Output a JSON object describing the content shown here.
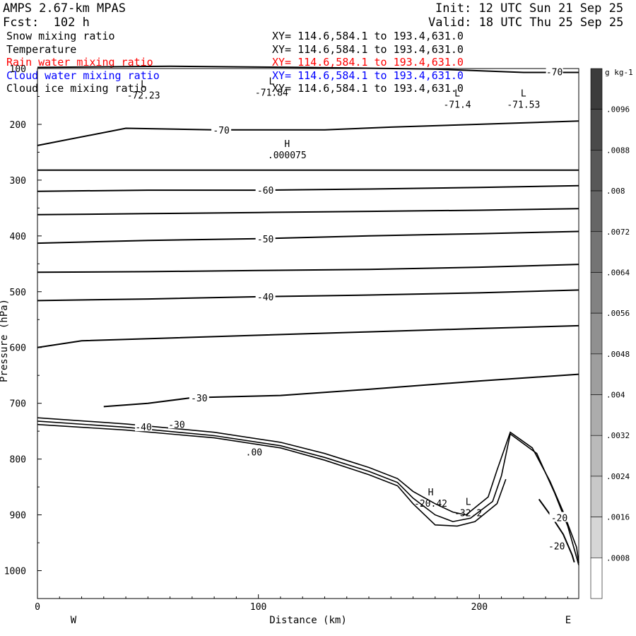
{
  "header": {
    "model": "AMPS 2.67-km MPAS",
    "forecast": "Fcst:  102 h",
    "init": "Init: 12 UTC Sun 21 Sep 25",
    "valid": "Valid: 18 UTC Thu 25 Sep 25"
  },
  "fields": [
    {
      "name": "Snow mixing ratio",
      "xy": "XY= 114.6,584.1 to 193.4,631.0",
      "color": "#000000"
    },
    {
      "name": "Temperature",
      "xy": "XY= 114.6,584.1 to 193.4,631.0",
      "color": "#000000"
    },
    {
      "name": "Rain water mixing ratio",
      "xy": "XY= 114.6,584.1 to 193.4,631.0",
      "color": "#ff0000"
    },
    {
      "name": "Cloud water mixing ratio",
      "xy": "XY= 114.6,584.1 to 193.4,631.0",
      "color": "#0000ff"
    },
    {
      "name": "Cloud ice mixing ratio",
      "xy": "XY= 114.6,584.1 to 193.4,631.0",
      "color": "#000000"
    }
  ],
  "chart_data": {
    "type": "contour-cross-section",
    "xlabel": "Distance (km)",
    "ylabel": "Pressure (hPa)",
    "xlim": [
      0,
      245
    ],
    "ylim": [
      1050,
      100
    ],
    "y_inverted": true,
    "x_ticks": [
      0,
      100,
      200
    ],
    "y_ticks": [
      100,
      200,
      300,
      400,
      500,
      600,
      700,
      800,
      900,
      1000
    ],
    "left_end_label": "W",
    "right_end_label": "E",
    "colorbar": {
      "unit": "g kg-1",
      "labels": [
        ".0096",
        ".0088",
        ".008",
        ".0072",
        ".0064",
        ".0056",
        ".0048",
        ".004",
        ".0032",
        ".0024",
        ".0016",
        ".0008"
      ],
      "colors_top_to_bottom": [
        "#3c3c3c",
        "#4a4a4a",
        "#585858",
        "#666666",
        "#747474",
        "#828282",
        "#909090",
        "#9e9e9e",
        "#acacac",
        "#bababa",
        "#c8c8c8",
        "#d6d6d6",
        "#ffffff"
      ]
    },
    "series": [
      {
        "name": "-70",
        "points": [
          [
            0,
            238
          ],
          [
            40,
            207
          ],
          [
            80,
            210
          ],
          [
            130,
            210
          ],
          [
            160,
            205
          ],
          [
            200,
            200
          ],
          [
            245,
            194
          ]
        ]
      },
      {
        "name": "",
        "points": [
          [
            0,
            282
          ],
          [
            245,
            282
          ]
        ]
      },
      {
        "name": "-60",
        "points": [
          [
            0,
            320
          ],
          [
            50,
            318
          ],
          [
            100,
            318
          ],
          [
            150,
            316
          ],
          [
            200,
            313
          ],
          [
            245,
            310
          ]
        ]
      },
      {
        "name": "",
        "points": [
          [
            0,
            362
          ],
          [
            50,
            360
          ],
          [
            100,
            358
          ],
          [
            150,
            356
          ],
          [
            200,
            354
          ],
          [
            245,
            351
          ]
        ]
      },
      {
        "name": "-50",
        "points": [
          [
            0,
            413
          ],
          [
            50,
            408
          ],
          [
            100,
            405
          ],
          [
            150,
            400
          ],
          [
            200,
            396
          ],
          [
            245,
            392
          ]
        ]
      },
      {
        "name": "",
        "points": [
          [
            0,
            465
          ],
          [
            50,
            464
          ],
          [
            100,
            462
          ],
          [
            150,
            460
          ],
          [
            200,
            456
          ],
          [
            245,
            451
          ]
        ]
      },
      {
        "name": "-40",
        "points": [
          [
            0,
            516
          ],
          [
            50,
            513
          ],
          [
            100,
            509
          ],
          [
            150,
            506
          ],
          [
            200,
            502
          ],
          [
            245,
            497
          ]
        ]
      },
      {
        "name": "",
        "points": [
          [
            0,
            600
          ],
          [
            20,
            588
          ],
          [
            100,
            578
          ],
          [
            150,
            572
          ],
          [
            200,
            566
          ],
          [
            245,
            561
          ]
        ]
      },
      {
        "name": "-30",
        "points": [
          [
            30,
            706
          ],
          [
            50,
            700
          ],
          [
            70,
            690
          ],
          [
            110,
            686
          ],
          [
            150,
            675
          ],
          [
            200,
            660
          ],
          [
            245,
            648
          ]
        ]
      },
      {
        "name": "",
        "points": [
          [
            0,
            98
          ],
          [
            60,
            96
          ],
          [
            120,
            98
          ],
          [
            180,
            101
          ],
          [
            220,
            107
          ],
          [
            245,
            107
          ]
        ]
      },
      {
        "name": "-20",
        "points": [
          [
            227,
            872
          ],
          [
            233,
            905
          ],
          [
            238,
            935
          ],
          [
            242,
            972
          ],
          [
            243,
            985
          ]
        ]
      }
    ],
    "terrain": [
      {
        "name": "",
        "points": [
          [
            0,
            726
          ],
          [
            40,
            737
          ],
          [
            80,
            752
          ],
          [
            110,
            770
          ],
          [
            130,
            790
          ],
          [
            150,
            815
          ],
          [
            163,
            835
          ],
          [
            170,
            858
          ],
          [
            180,
            880
          ],
          [
            188,
            895
          ],
          [
            194,
            900
          ],
          [
            204,
            868
          ],
          [
            208,
            820
          ],
          [
            214,
            752
          ],
          [
            224,
            780
          ],
          [
            232,
            840
          ],
          [
            238,
            895
          ],
          [
            244,
            958
          ],
          [
            245,
            986
          ]
        ]
      },
      {
        "name": "",
        "points": [
          [
            0,
            732
          ],
          [
            40,
            743
          ],
          [
            80,
            758
          ],
          [
            110,
            776
          ],
          [
            130,
            797
          ],
          [
            150,
            822
          ],
          [
            163,
            842
          ],
          [
            170,
            870
          ],
          [
            180,
            900
          ],
          [
            188,
            912
          ],
          [
            196,
            906
          ],
          [
            206,
            876
          ],
          [
            210,
            830
          ],
          [
            214,
            755
          ],
          [
            226,
            790
          ],
          [
            234,
            860
          ],
          [
            240,
            920
          ],
          [
            245,
            990
          ]
        ]
      },
      {
        "name": "",
        "points": [
          [
            0,
            738
          ],
          [
            40,
            748
          ],
          [
            80,
            762
          ],
          [
            110,
            780
          ],
          [
            130,
            802
          ],
          [
            150,
            828
          ],
          [
            163,
            848
          ],
          [
            170,
            880
          ],
          [
            180,
            918
          ],
          [
            190,
            920
          ],
          [
            198,
            912
          ],
          [
            208,
            880
          ],
          [
            212,
            836
          ]
        ]
      }
    ],
    "annotations": [
      {
        "text": "L",
        "value": "-72.23",
        "x": 48,
        "p": 146
      },
      {
        "text": "L",
        "value": "-71.84",
        "x": 106,
        "p": 141
      },
      {
        "text": "L",
        "value": "-71.4",
        "x": 190,
        "p": 163
      },
      {
        "text": "L",
        "value": "-71.53",
        "x": 220,
        "p": 163
      },
      {
        "text": "H",
        "value": ".000075",
        "x": 113,
        "p": 253
      },
      {
        "text": "H",
        "value": "-20.42",
        "x": 178,
        "p": 878
      },
      {
        "text": "L",
        "value": "-32.2",
        "x": 195,
        "p": 895
      },
      {
        "text": "",
        "value": "-70",
        "x": 234,
        "p": 108
      },
      {
        "text": "",
        "value": "-20",
        "x": 235,
        "p": 958
      },
      {
        "text": "",
        "value": "-40",
        "x": 48,
        "p": 745
      },
      {
        "text": "",
        "value": "-30",
        "x": 63,
        "p": 740
      },
      {
        "text": "",
        "value": ".00",
        "x": 98,
        "p": 790
      }
    ]
  }
}
